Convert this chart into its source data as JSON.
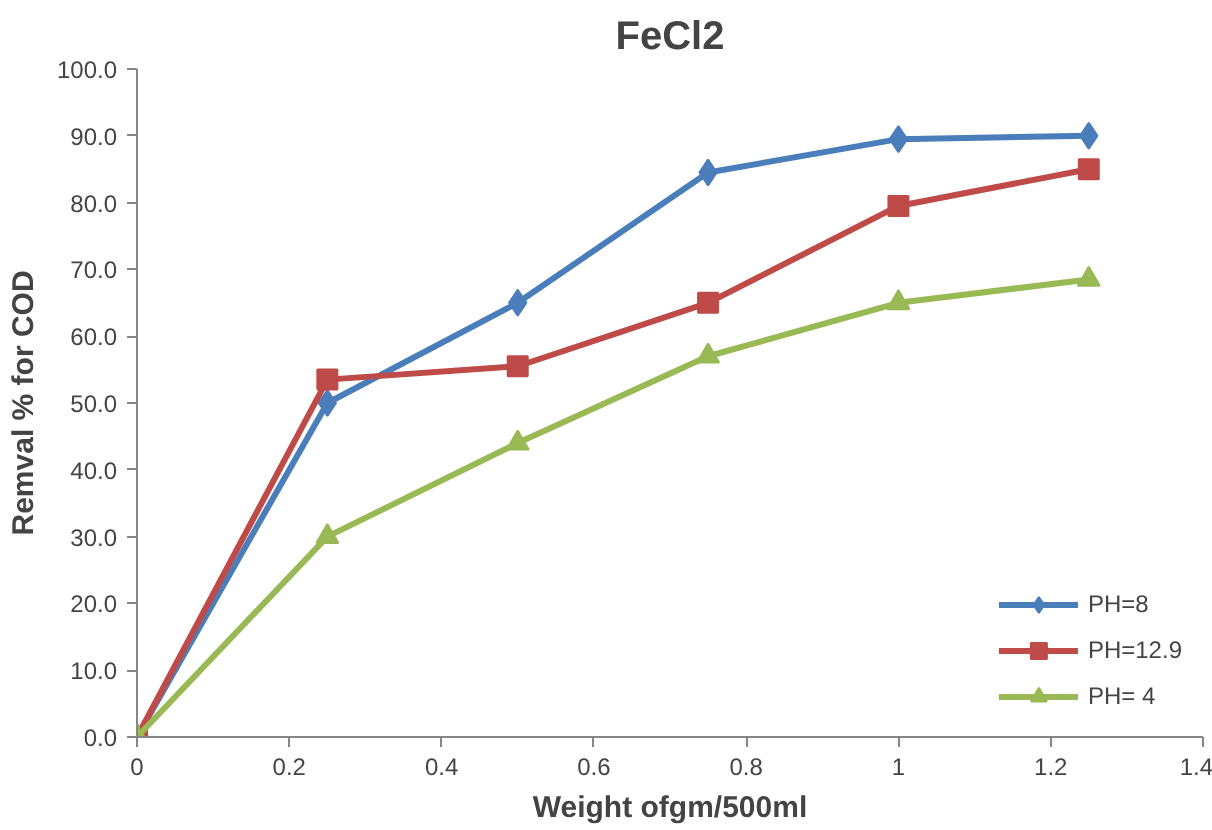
{
  "chart_data": {
    "type": "line",
    "title": "FeCl2",
    "xlabel": "Weight ofgm/500ml",
    "ylabel": "Remval % for COD",
    "x": [
      0,
      0.25,
      0.5,
      0.75,
      1,
      1.25
    ],
    "series": [
      {
        "name": "PH=8",
        "color": "#4a7ebb",
        "marker": "diamond",
        "values": [
          0,
          50,
          65,
          84.5,
          89.5,
          90
        ]
      },
      {
        "name": "PH=12.9",
        "color": "#be4b48",
        "marker": "square",
        "values": [
          0,
          53.5,
          55.5,
          65,
          79.5,
          85
        ]
      },
      {
        "name": "PH= 4",
        "color": "#98b954",
        "marker": "triangle",
        "values": [
          0,
          30,
          44,
          57,
          65,
          68.5
        ]
      }
    ],
    "xlim": [
      0,
      1.4
    ],
    "xticks": [
      0,
      0.2,
      0.4,
      0.6,
      0.8,
      1,
      1.2,
      1.4
    ],
    "ylim": [
      0,
      100
    ],
    "yticks": [
      {
        "value": 0,
        "label": "0.0"
      },
      {
        "value": 10,
        "label": "10.0"
      },
      {
        "value": 20,
        "label": "20.0"
      },
      {
        "value": 30,
        "label": "30.0"
      },
      {
        "value": 40,
        "label": "40.0"
      },
      {
        "value": 50,
        "label": "50.0"
      },
      {
        "value": 60,
        "label": "60.0"
      },
      {
        "value": 70,
        "label": "70.0"
      },
      {
        "value": 80,
        "label": "80.0"
      },
      {
        "value": 90,
        "label": "90.0"
      },
      {
        "value": 100,
        "label": "100.0"
      }
    ],
    "grid": false,
    "legend": "bottom right",
    "line_style": "solid"
  }
}
